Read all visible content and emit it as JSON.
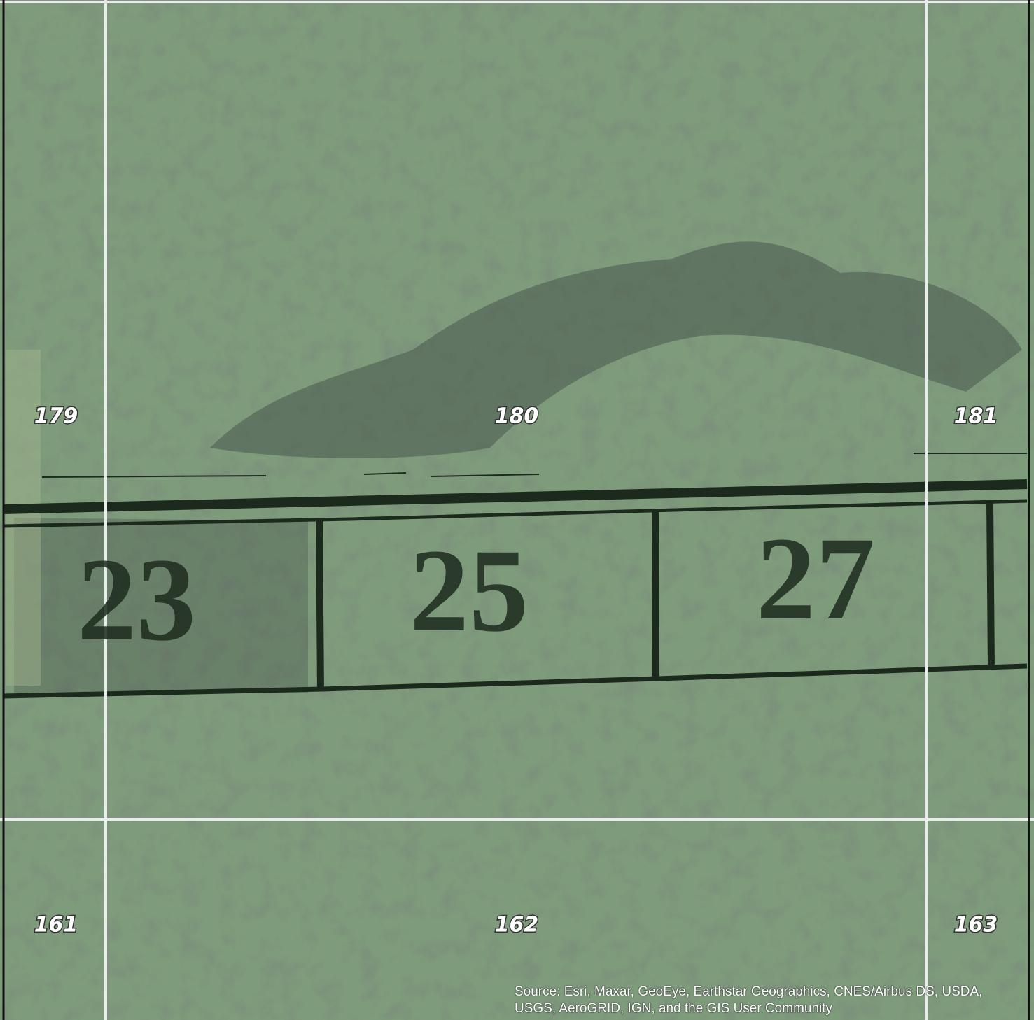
{
  "map": {
    "grid_labels": [
      "179",
      "180",
      "181",
      "161",
      "162",
      "163"
    ],
    "lot_numbers": [
      "23",
      "25",
      "27"
    ],
    "attribution": "Source: Esri, Maxar, GeoEye, Earthstar Geographics, CNES/Airbus DS, USDA, USGS, AeroGRID, IGN, and the GIS User Community"
  }
}
